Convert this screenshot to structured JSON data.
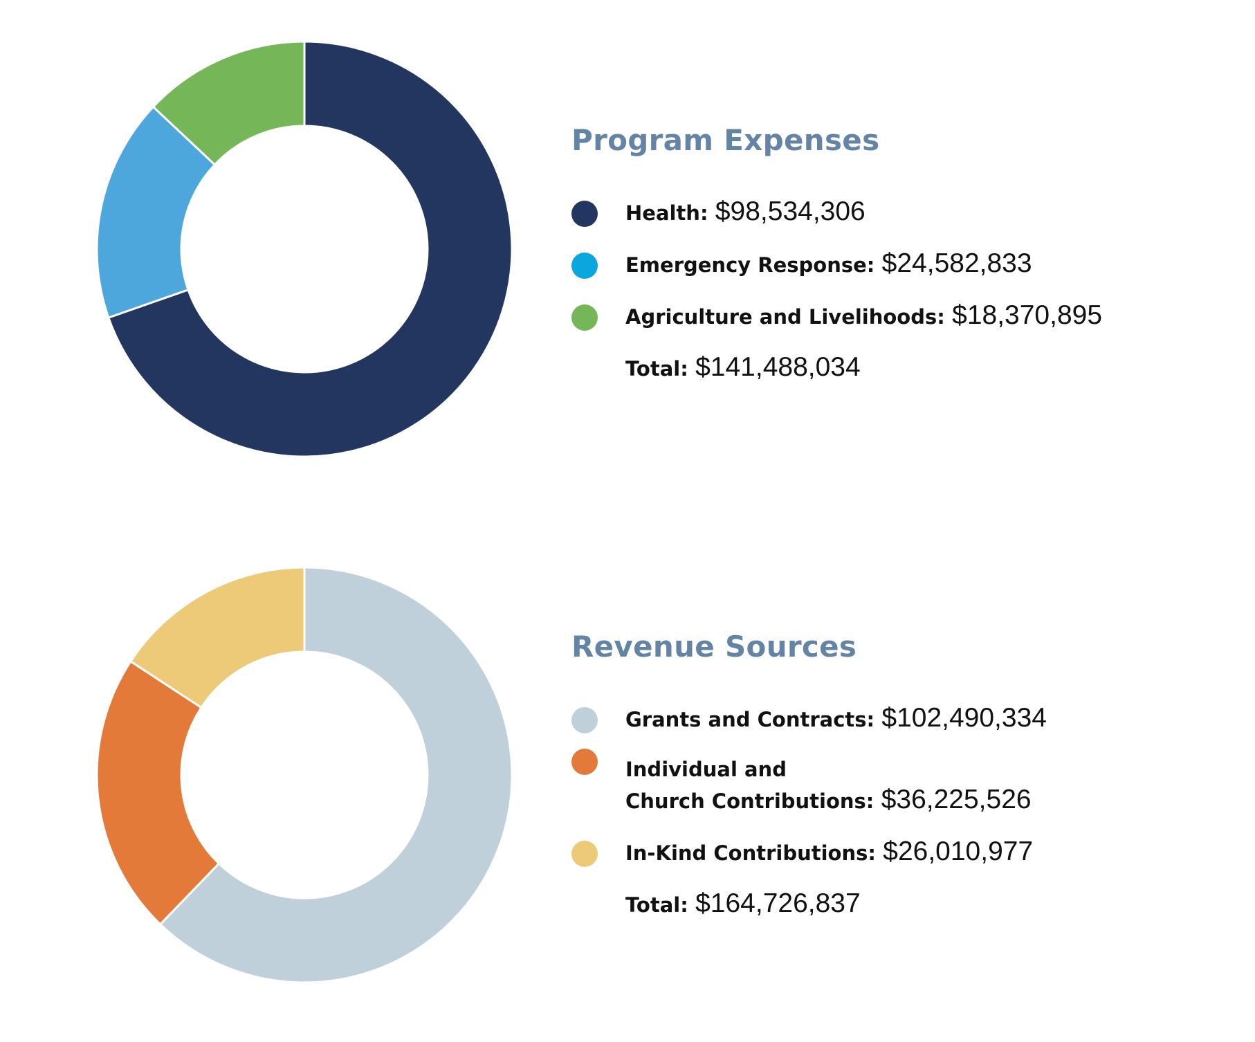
{
  "chart_data": [
    {
      "type": "pie",
      "title": "Program Expenses",
      "categories": [
        "Health",
        "Emergency Response",
        "Agriculture and Livelihoods"
      ],
      "values": [
        98534306,
        24582833,
        18370895
      ],
      "colors": [
        "#23365f",
        "#4ea7dc",
        "#74b658"
      ],
      "legend_colors": [
        "#23365f",
        "#0aa6de",
        "#74b658"
      ],
      "legend_labels": [
        "Health:",
        "Emergency Response:",
        "Agriculture and Livelihoods:"
      ],
      "value_labels": [
        "$98,534,306",
        "$24,582,833",
        "$18,370,895"
      ],
      "total_label": "Total:",
      "total_value": "$141,488,034",
      "legend_position": "right"
    },
    {
      "type": "pie",
      "title": "Revenue Sources",
      "categories": [
        "Grants and Contracts",
        "Individual and Church Contributions",
        "In-Kind Contributions"
      ],
      "values": [
        102490334,
        36225526,
        26010977
      ],
      "colors": [
        "#bfd0da",
        "#e47a3a",
        "#ecca78"
      ],
      "legend_colors": [
        "#bfd0da",
        "#e47a3a",
        "#ecca78"
      ],
      "legend_labels": [
        "Grants and Contracts:",
        "Individual and\nChurch Contributions:",
        "In-Kind Contributions:"
      ],
      "value_labels": [
        "$102,490,334",
        "$36,225,526",
        "$26,010,977"
      ],
      "total_label": "Total:",
      "total_value": "$164,726,837",
      "legend_position": "right"
    }
  ]
}
